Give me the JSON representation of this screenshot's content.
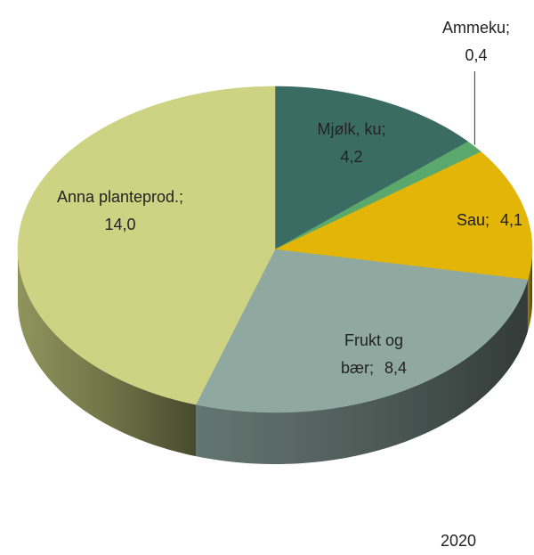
{
  "chart_data": {
    "type": "pie3d",
    "annotation": "2020",
    "categories": [
      "Mjølk, ku;",
      "Ammeku;",
      "Sau;",
      "Frukt og bær;",
      "Anna planteprod.;"
    ],
    "values": [
      4.2,
      0.4,
      4.1,
      8.4,
      14.0
    ],
    "value_labels": [
      "4,2",
      "0,4",
      "4,1",
      "8,4",
      "14,0"
    ],
    "colors": [
      "#3b6c63",
      "#5aa86c",
      "#e2b507",
      "#8fa9a1",
      "#cdd383"
    ]
  }
}
